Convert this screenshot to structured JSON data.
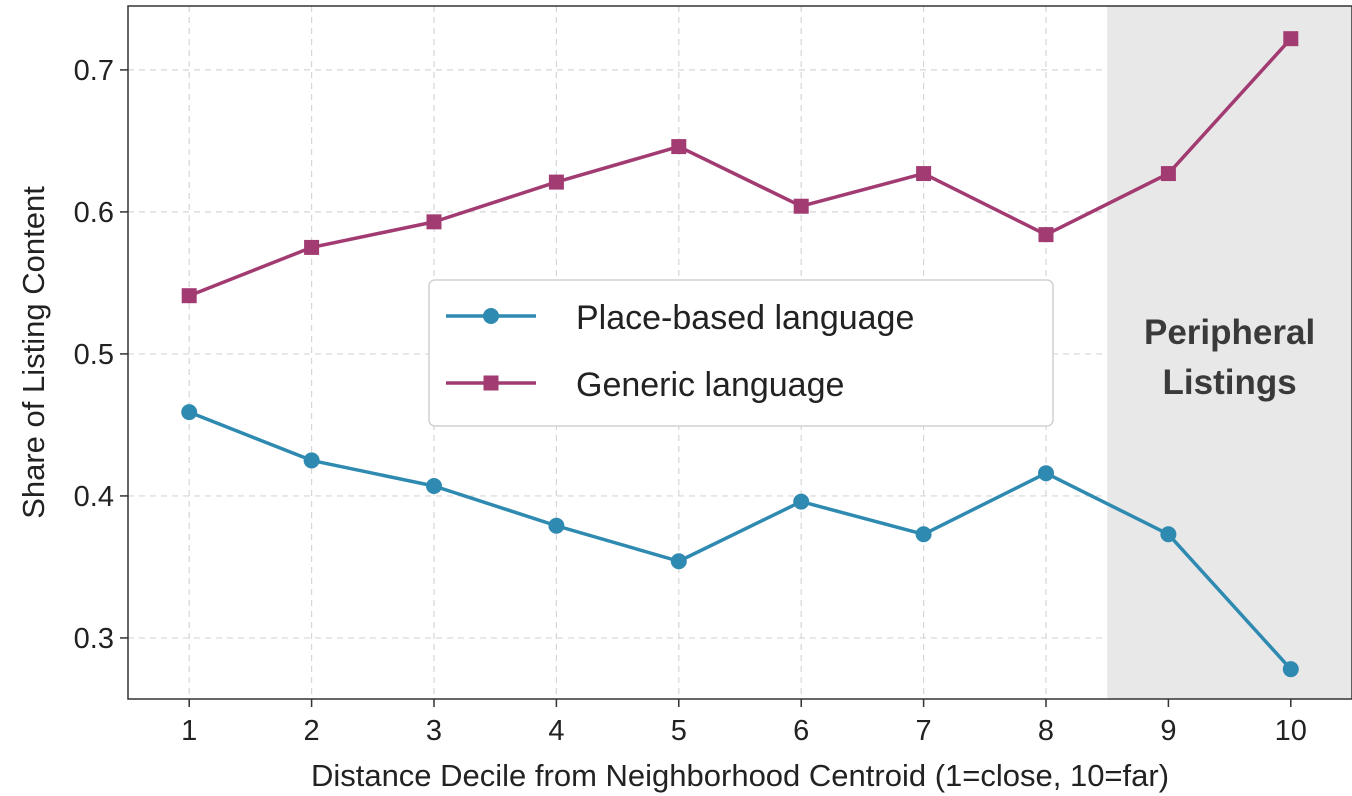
{
  "chart_data": {
    "type": "line",
    "x": [
      1,
      2,
      3,
      4,
      5,
      6,
      7,
      8,
      9,
      10
    ],
    "xticks": [
      "1",
      "2",
      "3",
      "4",
      "5",
      "6",
      "7",
      "8",
      "9",
      "10"
    ],
    "yticks": [
      "0.3",
      "0.4",
      "0.5",
      "0.6",
      "0.7"
    ],
    "ytick_values": [
      0.3,
      0.4,
      0.5,
      0.6,
      0.7
    ],
    "xlim": [
      0.5,
      10.5
    ],
    "ylim": [
      0.257,
      0.745
    ],
    "xlabel": "Distance Decile from Neighborhood Centroid (1=close, 10=far)",
    "ylabel": "Share of Listing Content",
    "grid": true,
    "legend_position": "center",
    "series": [
      {
        "name": "Place-based language",
        "marker": "circle",
        "color": "#2E8AB0",
        "values": [
          0.459,
          0.425,
          0.407,
          0.379,
          0.354,
          0.396,
          0.373,
          0.416,
          0.373,
          0.278
        ]
      },
      {
        "name": "Generic language",
        "marker": "square",
        "color": "#A23B72",
        "values": [
          0.541,
          0.575,
          0.593,
          0.621,
          0.646,
          0.604,
          0.627,
          0.584,
          0.627,
          0.722
        ]
      }
    ],
    "shaded_region": {
      "x_from": 8.5,
      "x_to": 10.5,
      "color": "#e8e8e8",
      "label_lines": [
        "Peripheral",
        "Listings"
      ]
    }
  }
}
